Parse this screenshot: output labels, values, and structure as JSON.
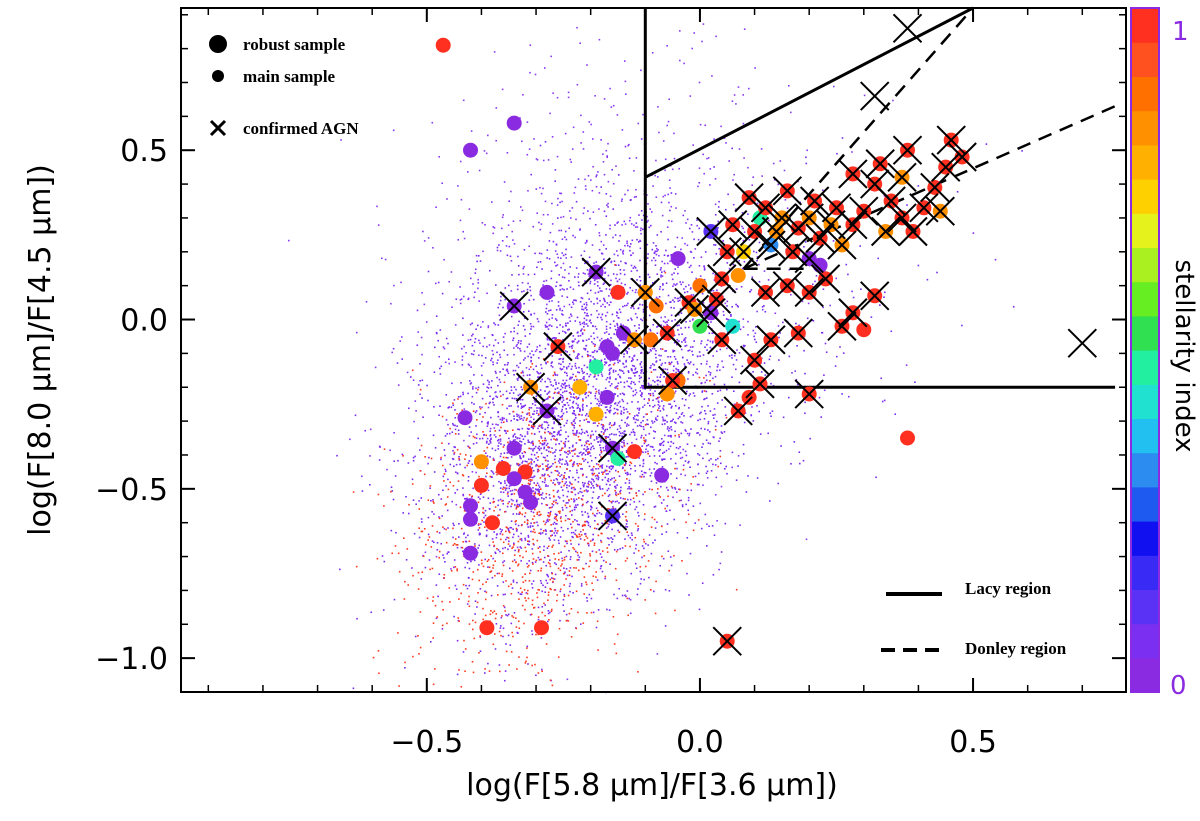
{
  "chart_data": {
    "type": "scatter",
    "xlabel": "log(F[5.8 μm]/F[3.6 μm])",
    "ylabel": "log(F[8.0 μm]/F[4.5 μm])",
    "xlim": [
      -0.95,
      0.78
    ],
    "ylim": [
      -1.1,
      0.92
    ],
    "x_ticks": [
      {
        "value": -0.5,
        "label": "−0.5"
      },
      {
        "value": 0.0,
        "label": "0.0"
      },
      {
        "value": 0.5,
        "label": "0.5"
      }
    ],
    "y_ticks": [
      {
        "value": -1.0,
        "label": "−1.0"
      },
      {
        "value": -0.5,
        "label": "−0.5"
      },
      {
        "value": 0.0,
        "label": "0.0"
      },
      {
        "value": 0.5,
        "label": "0.5"
      }
    ],
    "legend": {
      "robust": "robust sample",
      "main": "main sample",
      "agn": "confirmed AGN",
      "lacy": "Lacy region",
      "donley": "Donley region"
    },
    "colorbar": {
      "label": "stellarity index",
      "min_label": "0",
      "max_label": "1",
      "colors": [
        "#8a2be2",
        "#7b2ff0",
        "#5a32f5",
        "#3a2af5",
        "#1010f0",
        "#1e5af0",
        "#2c8cf0",
        "#22c0f0",
        "#20e0d0",
        "#22f0a0",
        "#30e050",
        "#66ee22",
        "#aaf020",
        "#e6f21c",
        "#ffd000",
        "#ffb000",
        "#ff9000",
        "#ff7000",
        "#ff5020",
        "#ff3020"
      ]
    },
    "lacy_region": [
      [
        -0.1,
        0.92
      ],
      [
        -0.1,
        -0.2
      ],
      [
        0.76,
        -0.2
      ]
    ],
    "lacy_upper": [
      [
        -0.1,
        0.42
      ],
      [
        -0.1,
        0.42
      ],
      [
        0.5,
        0.9
      ]
    ],
    "donley_lines": [
      [
        [
          0.08,
          0.15
        ],
        [
          0.5,
          0.9
        ]
      ],
      [
        [
          0.08,
          0.15
        ],
        [
          0.76,
          0.63
        ]
      ]
    ],
    "robust_points": [
      {
        "x": -0.47,
        "y": 0.81,
        "s": 1.0,
        "agn": false
      },
      {
        "x": -0.34,
        "y": 0.58,
        "s": 0.0,
        "agn": false
      },
      {
        "x": -0.42,
        "y": 0.5,
        "s": 0.0,
        "agn": false
      },
      {
        "x": -0.34,
        "y": 0.04,
        "s": 0.0,
        "agn": true
      },
      {
        "x": -0.28,
        "y": 0.08,
        "s": 0.0,
        "agn": false
      },
      {
        "x": -0.19,
        "y": 0.14,
        "s": 0.0,
        "agn": true
      },
      {
        "x": -0.15,
        "y": 0.08,
        "s": 1.0,
        "agn": false
      },
      {
        "x": -0.26,
        "y": -0.08,
        "s": 1.0,
        "agn": true
      },
      {
        "x": -0.31,
        "y": -0.2,
        "s": 0.85,
        "agn": true
      },
      {
        "x": -0.22,
        "y": -0.2,
        "s": 0.8,
        "agn": false
      },
      {
        "x": -0.28,
        "y": -0.27,
        "s": 0.0,
        "agn": true
      },
      {
        "x": -0.19,
        "y": -0.28,
        "s": 0.8,
        "agn": false
      },
      {
        "x": -0.17,
        "y": -0.23,
        "s": 0.0,
        "agn": false
      },
      {
        "x": -0.19,
        "y": -0.14,
        "s": 0.45,
        "agn": false
      },
      {
        "x": -0.14,
        "y": -0.04,
        "s": 0.0,
        "agn": false
      },
      {
        "x": -0.17,
        "y": -0.08,
        "s": 0.0,
        "agn": false
      },
      {
        "x": -0.16,
        "y": -0.1,
        "s": 0.0,
        "agn": false
      },
      {
        "x": -0.43,
        "y": -0.29,
        "s": 0.0,
        "agn": false
      },
      {
        "x": -0.4,
        "y": -0.42,
        "s": 0.85,
        "agn": false
      },
      {
        "x": -0.36,
        "y": -0.44,
        "s": 1.0,
        "agn": false
      },
      {
        "x": -0.32,
        "y": -0.45,
        "s": 1.0,
        "agn": false
      },
      {
        "x": -0.34,
        "y": -0.38,
        "s": 0.0,
        "agn": false
      },
      {
        "x": -0.34,
        "y": -0.47,
        "s": 0.0,
        "agn": false
      },
      {
        "x": -0.32,
        "y": -0.51,
        "s": 0.0,
        "agn": false
      },
      {
        "x": -0.31,
        "y": -0.54,
        "s": 0.0,
        "agn": false
      },
      {
        "x": -0.4,
        "y": -0.49,
        "s": 1.0,
        "agn": false
      },
      {
        "x": -0.42,
        "y": -0.55,
        "s": 0.0,
        "agn": false
      },
      {
        "x": -0.42,
        "y": -0.59,
        "s": 0.0,
        "agn": false
      },
      {
        "x": -0.38,
        "y": -0.6,
        "s": 1.0,
        "agn": false
      },
      {
        "x": -0.42,
        "y": -0.69,
        "s": 0.0,
        "agn": false
      },
      {
        "x": -0.39,
        "y": -0.91,
        "s": 1.0,
        "agn": false
      },
      {
        "x": -0.29,
        "y": -0.91,
        "s": 1.0,
        "agn": false
      },
      {
        "x": -0.16,
        "y": -0.38,
        "s": 0.0,
        "agn": true
      },
      {
        "x": -0.15,
        "y": -0.41,
        "s": 0.45,
        "agn": false
      },
      {
        "x": -0.12,
        "y": -0.39,
        "s": 1.0,
        "agn": false
      },
      {
        "x": -0.07,
        "y": -0.46,
        "s": 0.0,
        "agn": false
      },
      {
        "x": -0.16,
        "y": -0.58,
        "s": 0.1,
        "agn": true
      },
      {
        "x": 0.05,
        "y": -0.95,
        "s": 1.0,
        "agn": true
      },
      {
        "x": 0.38,
        "y": -0.35,
        "s": 1.0,
        "agn": false
      },
      {
        "x": 0.02,
        "y": 0.26,
        "s": 0.1,
        "agn": true
      },
      {
        "x": 0.11,
        "y": 0.3,
        "s": 0.45,
        "agn": false
      },
      {
        "x": -0.04,
        "y": 0.18,
        "s": 0.0,
        "agn": false
      },
      {
        "x": 0.13,
        "y": 0.22,
        "s": 0.3,
        "agn": true
      },
      {
        "x": 0.2,
        "y": 0.18,
        "s": 0.0,
        "agn": true
      },
      {
        "x": 0.22,
        "y": 0.16,
        "s": 0.0,
        "agn": false
      },
      {
        "x": 0.08,
        "y": 0.2,
        "s": 0.75,
        "agn": true
      },
      {
        "x": 0.06,
        "y": -0.02,
        "s": 0.4,
        "agn": false
      },
      {
        "x": 0.02,
        "y": 0.02,
        "s": 0.0,
        "agn": true
      },
      {
        "x": -0.04,
        "y": -0.18,
        "s": 0.9,
        "agn": false
      },
      {
        "x": -0.06,
        "y": -0.22,
        "s": 0.85,
        "agn": false
      },
      {
        "x": -0.05,
        "y": -0.18,
        "s": 1.0,
        "agn": true
      },
      {
        "x": 0.07,
        "y": -0.27,
        "s": 1.0,
        "agn": true
      },
      {
        "x": 0.09,
        "y": -0.23,
        "s": 1.0,
        "agn": false
      },
      {
        "x": 0.11,
        "y": -0.19,
        "s": 1.0,
        "agn": true
      },
      {
        "x": 0.2,
        "y": -0.22,
        "s": 1.0,
        "agn": true
      },
      {
        "x": 0.1,
        "y": -0.12,
        "s": 1.0,
        "agn": true
      },
      {
        "x": 0.13,
        "y": -0.06,
        "s": 1.0,
        "agn": true
      },
      {
        "x": 0.18,
        "y": -0.04,
        "s": 1.0,
        "agn": true
      },
      {
        "x": 0.26,
        "y": -0.02,
        "s": 1.0,
        "agn": true
      },
      {
        "x": 0.28,
        "y": 0.02,
        "s": 1.0,
        "agn": true
      },
      {
        "x": 0.32,
        "y": 0.07,
        "s": 1.0,
        "agn": true
      },
      {
        "x": 0.3,
        "y": -0.03,
        "s": 1.0,
        "agn": false
      },
      {
        "x": -0.1,
        "y": 0.08,
        "s": 0.85,
        "agn": true
      },
      {
        "x": -0.08,
        "y": 0.04,
        "s": 0.9,
        "agn": false
      },
      {
        "x": -0.12,
        "y": -0.06,
        "s": 0.85,
        "agn": true
      },
      {
        "x": -0.09,
        "y": -0.06,
        "s": 0.9,
        "agn": false
      },
      {
        "x": -0.06,
        "y": -0.04,
        "s": 1.0,
        "agn": true
      },
      {
        "x": -0.02,
        "y": 0.05,
        "s": 1.0,
        "agn": true
      },
      {
        "x": 0.0,
        "y": 0.1,
        "s": 0.9,
        "agn": false
      },
      {
        "x": 0.04,
        "y": 0.12,
        "s": 1.0,
        "agn": true
      },
      {
        "x": 0.03,
        "y": 0.06,
        "s": 1.0,
        "agn": true
      },
      {
        "x": 0.07,
        "y": 0.13,
        "s": 0.85,
        "agn": false
      },
      {
        "x": -0.01,
        "y": 0.03,
        "s": 0.85,
        "agn": true
      },
      {
        "x": 0.04,
        "y": -0.06,
        "s": 1.0,
        "agn": true
      },
      {
        "x": 0.0,
        "y": -0.02,
        "s": 0.5,
        "agn": false
      },
      {
        "x": 0.12,
        "y": 0.08,
        "s": 1.0,
        "agn": true
      },
      {
        "x": 0.16,
        "y": 0.1,
        "s": 1.0,
        "agn": true
      },
      {
        "x": 0.2,
        "y": 0.08,
        "s": 1.0,
        "agn": true
      },
      {
        "x": 0.23,
        "y": 0.12,
        "s": 1.0,
        "agn": true
      },
      {
        "x": 0.17,
        "y": 0.2,
        "s": 1.0,
        "agn": true
      },
      {
        "x": 0.14,
        "y": 0.26,
        "s": 0.85,
        "agn": true
      },
      {
        "x": 0.18,
        "y": 0.27,
        "s": 1.0,
        "agn": true
      },
      {
        "x": 0.22,
        "y": 0.24,
        "s": 1.0,
        "agn": true
      },
      {
        "x": 0.26,
        "y": 0.22,
        "s": 0.85,
        "agn": true
      },
      {
        "x": 0.28,
        "y": 0.28,
        "s": 1.0,
        "agn": true
      },
      {
        "x": 0.3,
        "y": 0.32,
        "s": 1.0,
        "agn": true
      },
      {
        "x": 0.25,
        "y": 0.33,
        "s": 1.0,
        "agn": true
      },
      {
        "x": 0.21,
        "y": 0.35,
        "s": 1.0,
        "agn": true
      },
      {
        "x": 0.16,
        "y": 0.38,
        "s": 1.0,
        "agn": true
      },
      {
        "x": 0.12,
        "y": 0.33,
        "s": 1.0,
        "agn": true
      },
      {
        "x": 0.09,
        "y": 0.36,
        "s": 1.0,
        "agn": true
      },
      {
        "x": 0.32,
        "y": 0.4,
        "s": 1.0,
        "agn": true
      },
      {
        "x": 0.35,
        "y": 0.35,
        "s": 1.0,
        "agn": true
      },
      {
        "x": 0.37,
        "y": 0.3,
        "s": 1.0,
        "agn": true
      },
      {
        "x": 0.39,
        "y": 0.26,
        "s": 1.0,
        "agn": true
      },
      {
        "x": 0.41,
        "y": 0.33,
        "s": 1.0,
        "agn": true
      },
      {
        "x": 0.43,
        "y": 0.39,
        "s": 1.0,
        "agn": true
      },
      {
        "x": 0.45,
        "y": 0.45,
        "s": 1.0,
        "agn": true
      },
      {
        "x": 0.48,
        "y": 0.48,
        "s": 1.0,
        "agn": true
      },
      {
        "x": 0.46,
        "y": 0.53,
        "s": 1.0,
        "agn": true
      },
      {
        "x": 0.38,
        "y": 0.5,
        "s": 1.0,
        "agn": true
      },
      {
        "x": 0.33,
        "y": 0.46,
        "s": 1.0,
        "agn": true
      },
      {
        "x": 0.28,
        "y": 0.43,
        "s": 1.0,
        "agn": true
      },
      {
        "x": 0.37,
        "y": 0.42,
        "s": 0.85,
        "agn": true
      },
      {
        "x": 0.24,
        "y": 0.28,
        "s": 0.85,
        "agn": true
      },
      {
        "x": 0.2,
        "y": 0.3,
        "s": 0.85,
        "agn": true
      },
      {
        "x": 0.15,
        "y": 0.3,
        "s": 0.85,
        "agn": true
      },
      {
        "x": 0.1,
        "y": 0.26,
        "s": 1.0,
        "agn": true
      },
      {
        "x": 0.34,
        "y": 0.26,
        "s": 0.85,
        "agn": true
      },
      {
        "x": 0.44,
        "y": 0.32,
        "s": 0.85,
        "agn": true
      },
      {
        "x": 0.06,
        "y": 0.28,
        "s": 1.0,
        "agn": true
      },
      {
        "x": 0.05,
        "y": 0.2,
        "s": 1.0,
        "agn": true
      }
    ],
    "agn_only": [
      {
        "x": 0.38,
        "y": 0.86
      },
      {
        "x": 0.32,
        "y": 0.66
      },
      {
        "x": 0.7,
        "y": -0.07
      }
    ]
  }
}
